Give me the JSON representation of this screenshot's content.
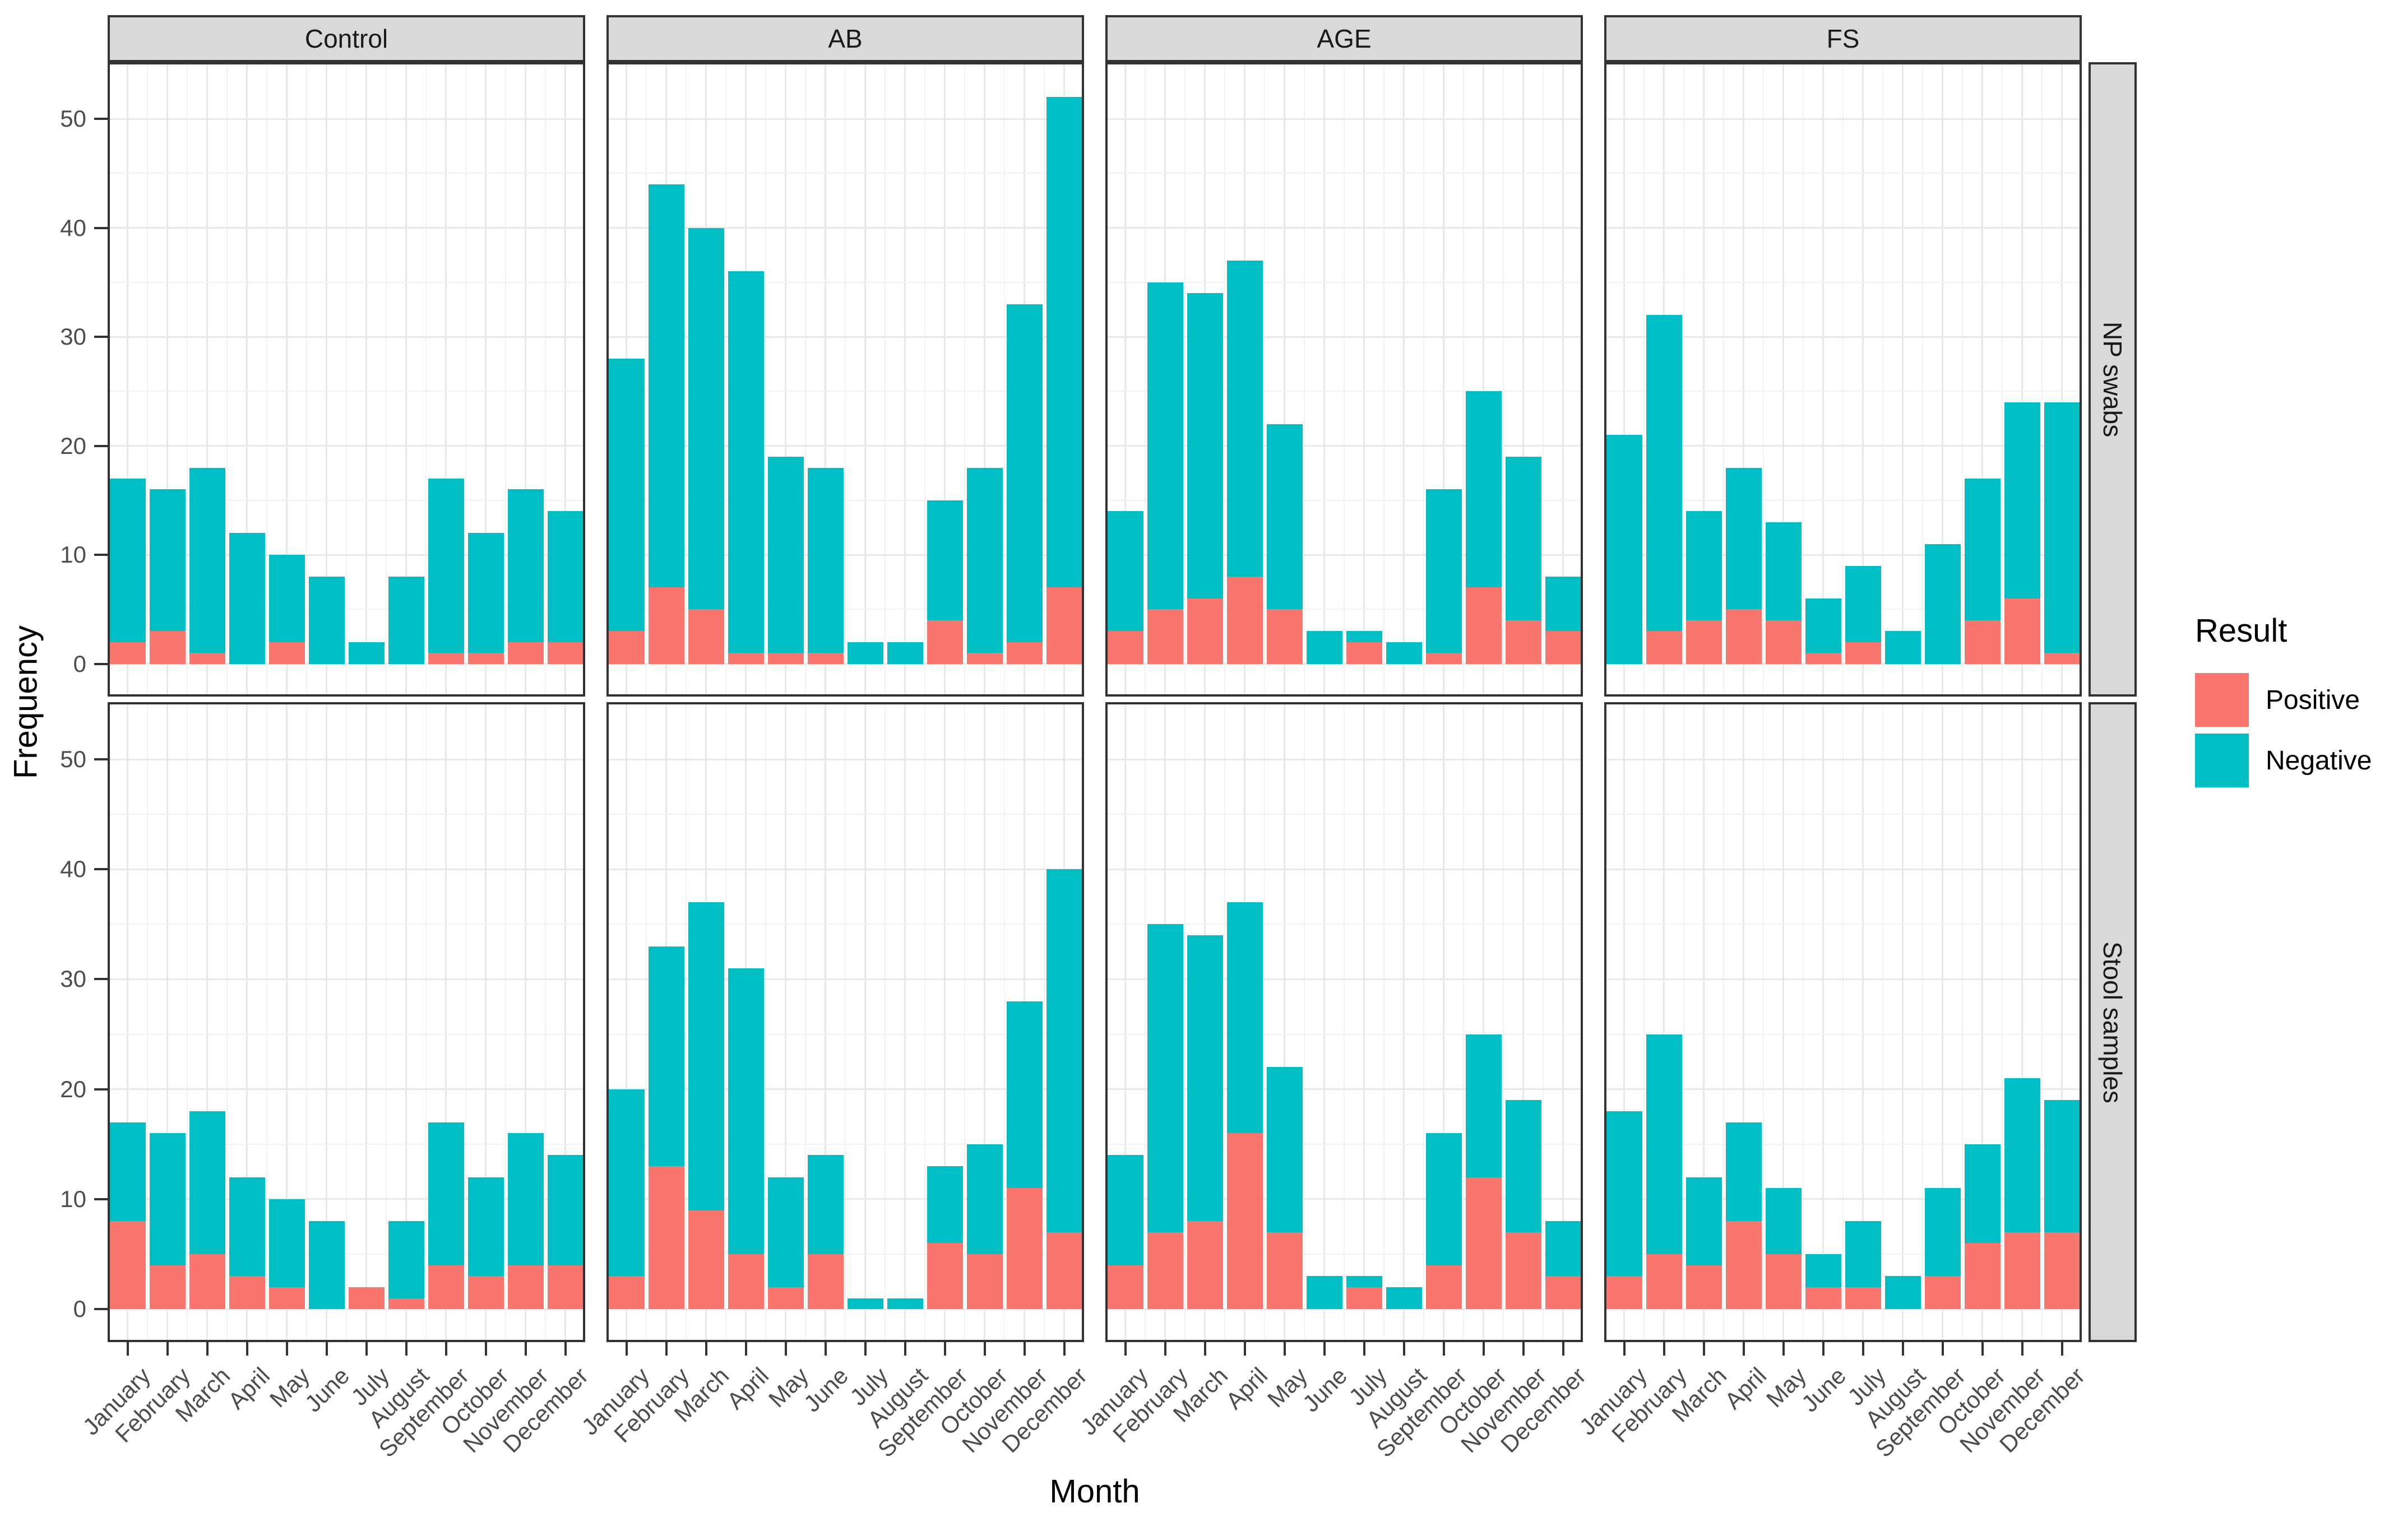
{
  "chart_data": {
    "type": "bar",
    "stacked": true,
    "title": "",
    "xlabel": "Month",
    "ylabel": "Frequency",
    "ylim": [
      0,
      55
    ],
    "yticks": [
      0,
      10,
      20,
      30,
      40,
      50
    ],
    "ytick_labels": [
      "0",
      "10",
      "20",
      "30",
      "40",
      "50"
    ],
    "grid": true,
    "legend_position": "right",
    "categories": [
      "January",
      "February",
      "March",
      "April",
      "May",
      "June",
      "July",
      "August",
      "September",
      "October",
      "November",
      "December"
    ],
    "facet_cols": [
      "Control",
      "AB",
      "AGE",
      "FS"
    ],
    "facet_rows": [
      "NP swabs",
      "Stool samples"
    ],
    "legend": {
      "title": "Result",
      "entries": [
        {
          "label": "Positive",
          "color": "#F8766D"
        },
        {
          "label": "Negative",
          "color": "#00BFC4"
        }
      ]
    },
    "panels": [
      {
        "facet_row": "NP swabs",
        "facet_col": "Control",
        "series": [
          {
            "name": "Positive",
            "values": [
              2,
              3,
              1,
              0,
              2,
              0,
              0,
              0,
              1,
              1,
              2,
              2
            ]
          },
          {
            "name": "Negative",
            "values": [
              15,
              13,
              17,
              12,
              8,
              8,
              2,
              8,
              16,
              11,
              14,
              12
            ]
          }
        ]
      },
      {
        "facet_row": "NP swabs",
        "facet_col": "AB",
        "series": [
          {
            "name": "Positive",
            "values": [
              3,
              7,
              5,
              1,
              1,
              1,
              0,
              0,
              4,
              1,
              2,
              7
            ]
          },
          {
            "name": "Negative",
            "values": [
              25,
              37,
              35,
              35,
              18,
              17,
              2,
              2,
              11,
              17,
              31,
              45
            ]
          }
        ]
      },
      {
        "facet_row": "NP swabs",
        "facet_col": "AGE",
        "series": [
          {
            "name": "Positive",
            "values": [
              3,
              5,
              6,
              8,
              5,
              0,
              2,
              0,
              1,
              7,
              4,
              3
            ]
          },
          {
            "name": "Negative",
            "values": [
              11,
              30,
              28,
              29,
              17,
              3,
              1,
              2,
              15,
              18,
              15,
              5
            ]
          }
        ]
      },
      {
        "facet_row": "NP swabs",
        "facet_col": "FS",
        "series": [
          {
            "name": "Positive",
            "values": [
              0,
              3,
              4,
              5,
              4,
              1,
              2,
              0,
              0,
              4,
              6,
              1
            ]
          },
          {
            "name": "Negative",
            "values": [
              21,
              29,
              10,
              13,
              9,
              5,
              7,
              3,
              11,
              13,
              18,
              23
            ]
          }
        ]
      },
      {
        "facet_row": "Stool samples",
        "facet_col": "Control",
        "series": [
          {
            "name": "Positive",
            "values": [
              8,
              4,
              5,
              3,
              2,
              0,
              2,
              1,
              4,
              3,
              4,
              4
            ]
          },
          {
            "name": "Negative",
            "values": [
              9,
              12,
              13,
              9,
              8,
              8,
              0,
              7,
              13,
              9,
              12,
              10
            ]
          }
        ]
      },
      {
        "facet_row": "Stool samples",
        "facet_col": "AB",
        "series": [
          {
            "name": "Positive",
            "values": [
              3,
              13,
              9,
              5,
              2,
              5,
              0,
              0,
              6,
              5,
              11,
              7
            ]
          },
          {
            "name": "Negative",
            "values": [
              17,
              20,
              28,
              26,
              10,
              9,
              1,
              1,
              7,
              10,
              17,
              33
            ]
          }
        ]
      },
      {
        "facet_row": "Stool samples",
        "facet_col": "AGE",
        "series": [
          {
            "name": "Positive",
            "values": [
              4,
              7,
              8,
              16,
              7,
              0,
              2,
              0,
              4,
              12,
              7,
              3
            ]
          },
          {
            "name": "Negative",
            "values": [
              10,
              28,
              26,
              21,
              15,
              3,
              1,
              2,
              12,
              13,
              12,
              5
            ]
          }
        ]
      },
      {
        "facet_row": "Stool samples",
        "facet_col": "FS",
        "series": [
          {
            "name": "Positive",
            "values": [
              3,
              5,
              4,
              8,
              5,
              2,
              2,
              0,
              3,
              6,
              7,
              7
            ]
          },
          {
            "name": "Negative",
            "values": [
              15,
              20,
              8,
              9,
              6,
              3,
              6,
              3,
              8,
              9,
              14,
              12
            ]
          }
        ]
      }
    ]
  },
  "colors": {
    "positive": "#F8766D",
    "negative": "#00BFC4",
    "strip_bg": "#D9D9D9",
    "panel_border": "#333333",
    "grid_major": "#E8E8E8",
    "grid_minor": "#F2F2F2",
    "tick_text": "#4D4D4D",
    "axis_text": "#000000"
  }
}
